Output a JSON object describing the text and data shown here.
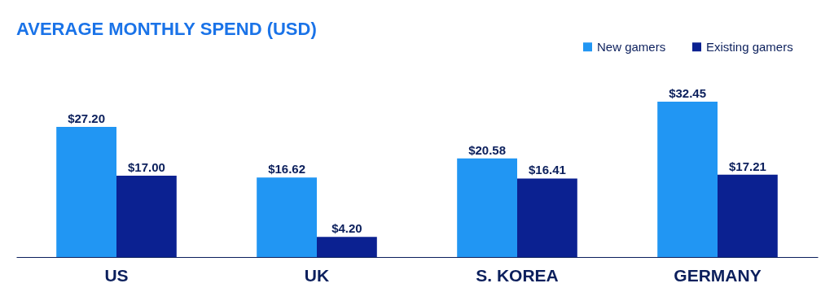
{
  "chart_data": {
    "type": "bar",
    "title": "AVERAGE MONTHLY SPEND (USD)",
    "categories": [
      "US",
      "UK",
      "S. KOREA",
      "GERMANY"
    ],
    "series": [
      {
        "name": "New gamers",
        "color": "#2196f3",
        "values": [
          27.2,
          16.62,
          20.58,
          32.45
        ],
        "value_labels": [
          "$27.20",
          "$16.62",
          "$20.58",
          "$32.45"
        ]
      },
      {
        "name": "Existing gamers",
        "color": "#0b2191",
        "values": [
          17.0,
          4.2,
          16.41,
          17.21
        ],
        "value_labels": [
          "$17.00",
          "$4.20",
          "$16.41",
          "$17.21"
        ]
      }
    ],
    "legend": "top right",
    "grid": false
  }
}
